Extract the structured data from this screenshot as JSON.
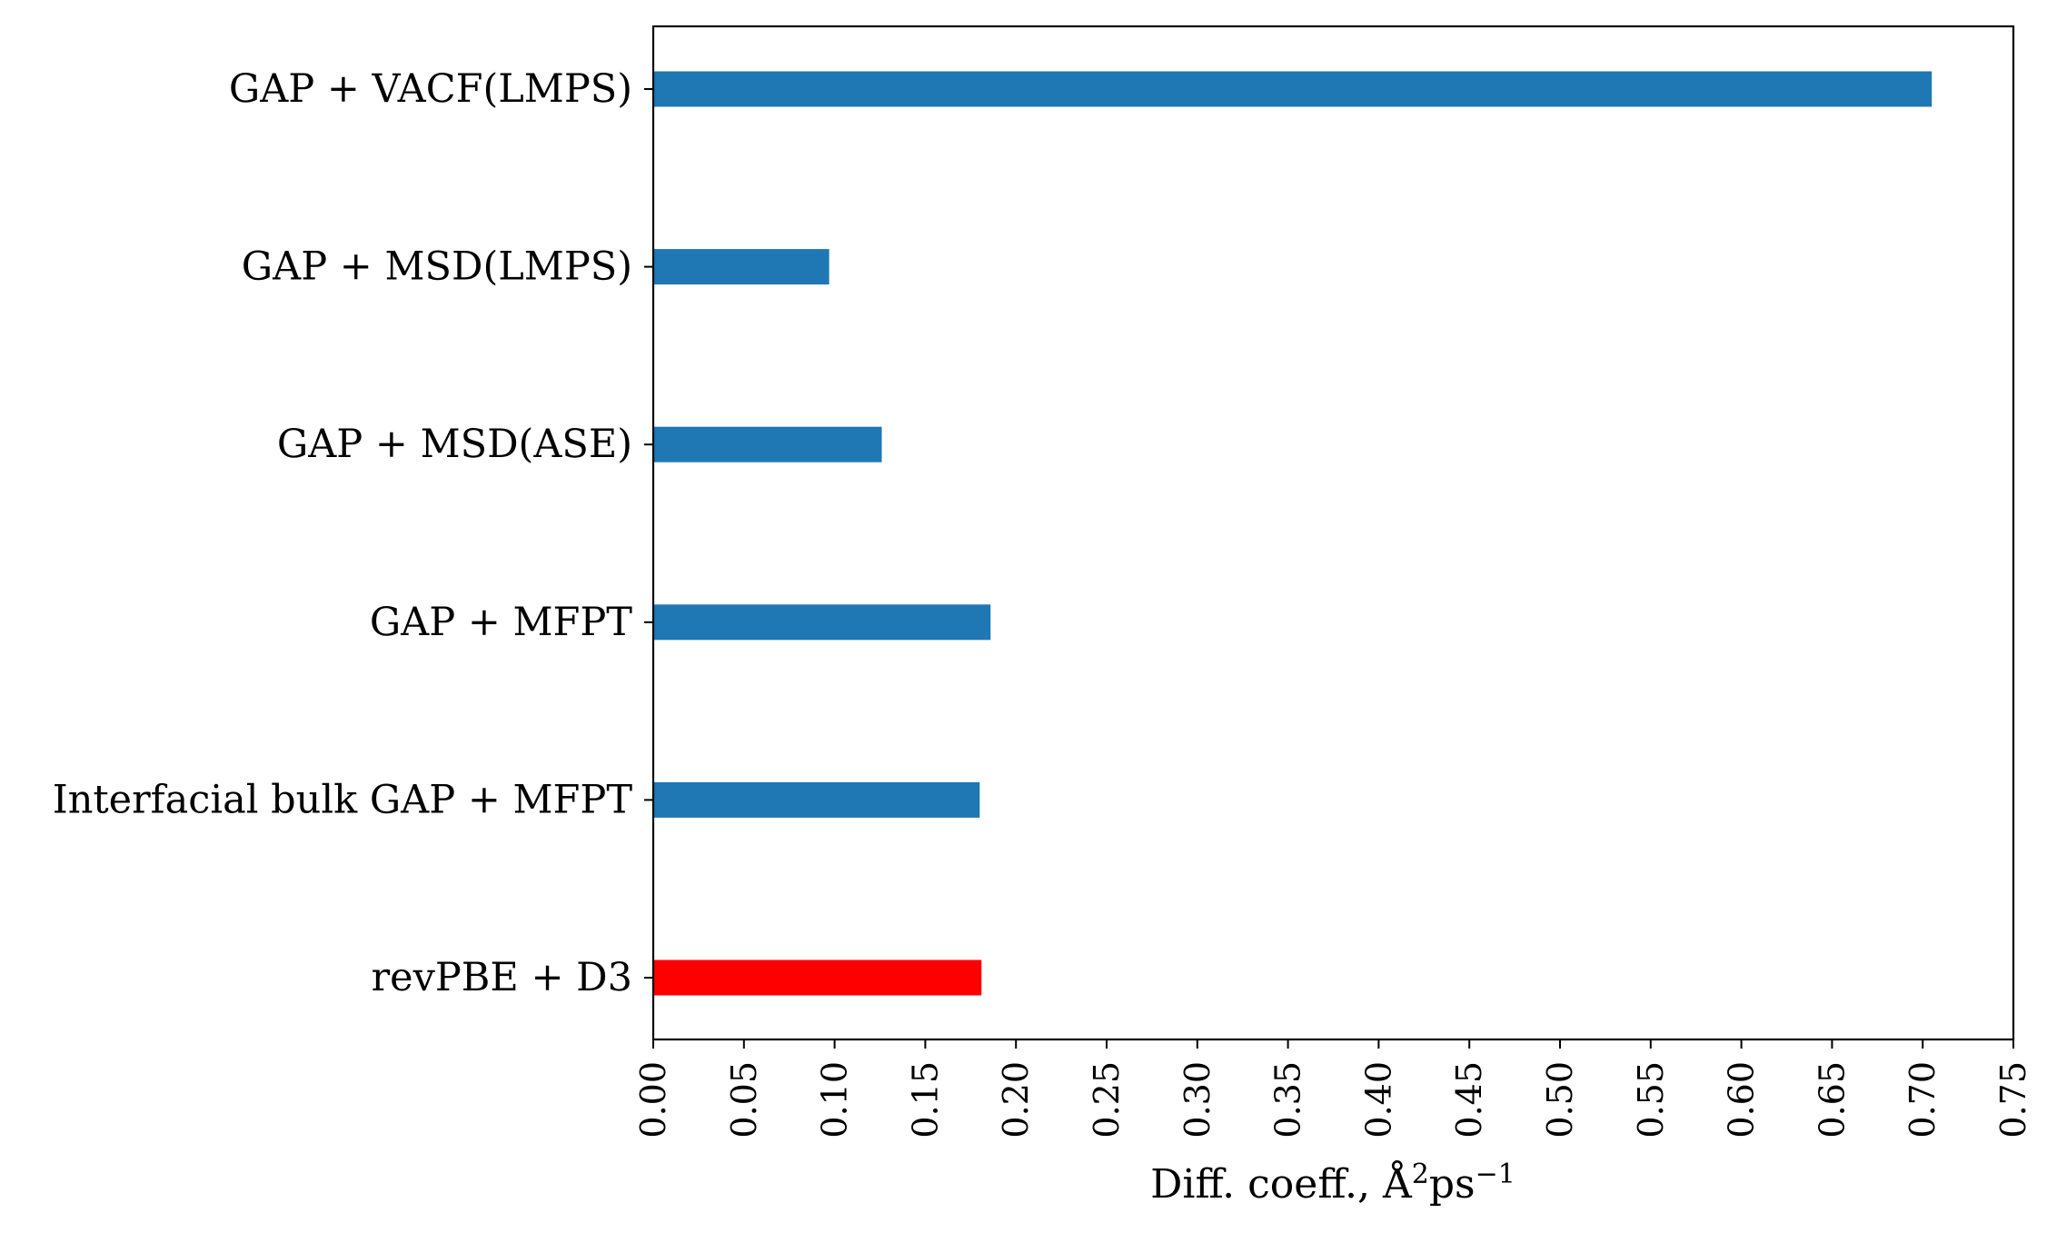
{
  "chart_data": {
    "type": "bar",
    "orientation": "horizontal",
    "categories": [
      "GAP + VACF(LMPS)",
      "GAP + MSD(LMPS)",
      "GAP + MSD(ASE)",
      "GAP + MFPT",
      "Interfacial bulk GAP + MFPT",
      "revPBE + D3"
    ],
    "values": [
      0.705,
      0.097,
      0.126,
      0.186,
      0.18,
      0.181
    ],
    "bar_colors": [
      "#1f77b4",
      "#1f77b4",
      "#1f77b4",
      "#1f77b4",
      "#1f77b4",
      "#ff0000"
    ],
    "xlim": [
      0.0,
      0.75
    ],
    "xticks": [
      "0.00",
      "0.05",
      "0.10",
      "0.15",
      "0.20",
      "0.25",
      "0.30",
      "0.35",
      "0.40",
      "0.45",
      "0.50",
      "0.55",
      "0.60",
      "0.65",
      "0.70",
      "0.75"
    ],
    "xlabel": {
      "text": "Diff. coeff., Å",
      "sup1": "2",
      "mid": "ps",
      "sup2": "−1"
    },
    "ylabel": "",
    "title": "",
    "grid": false,
    "legend": "none"
  }
}
